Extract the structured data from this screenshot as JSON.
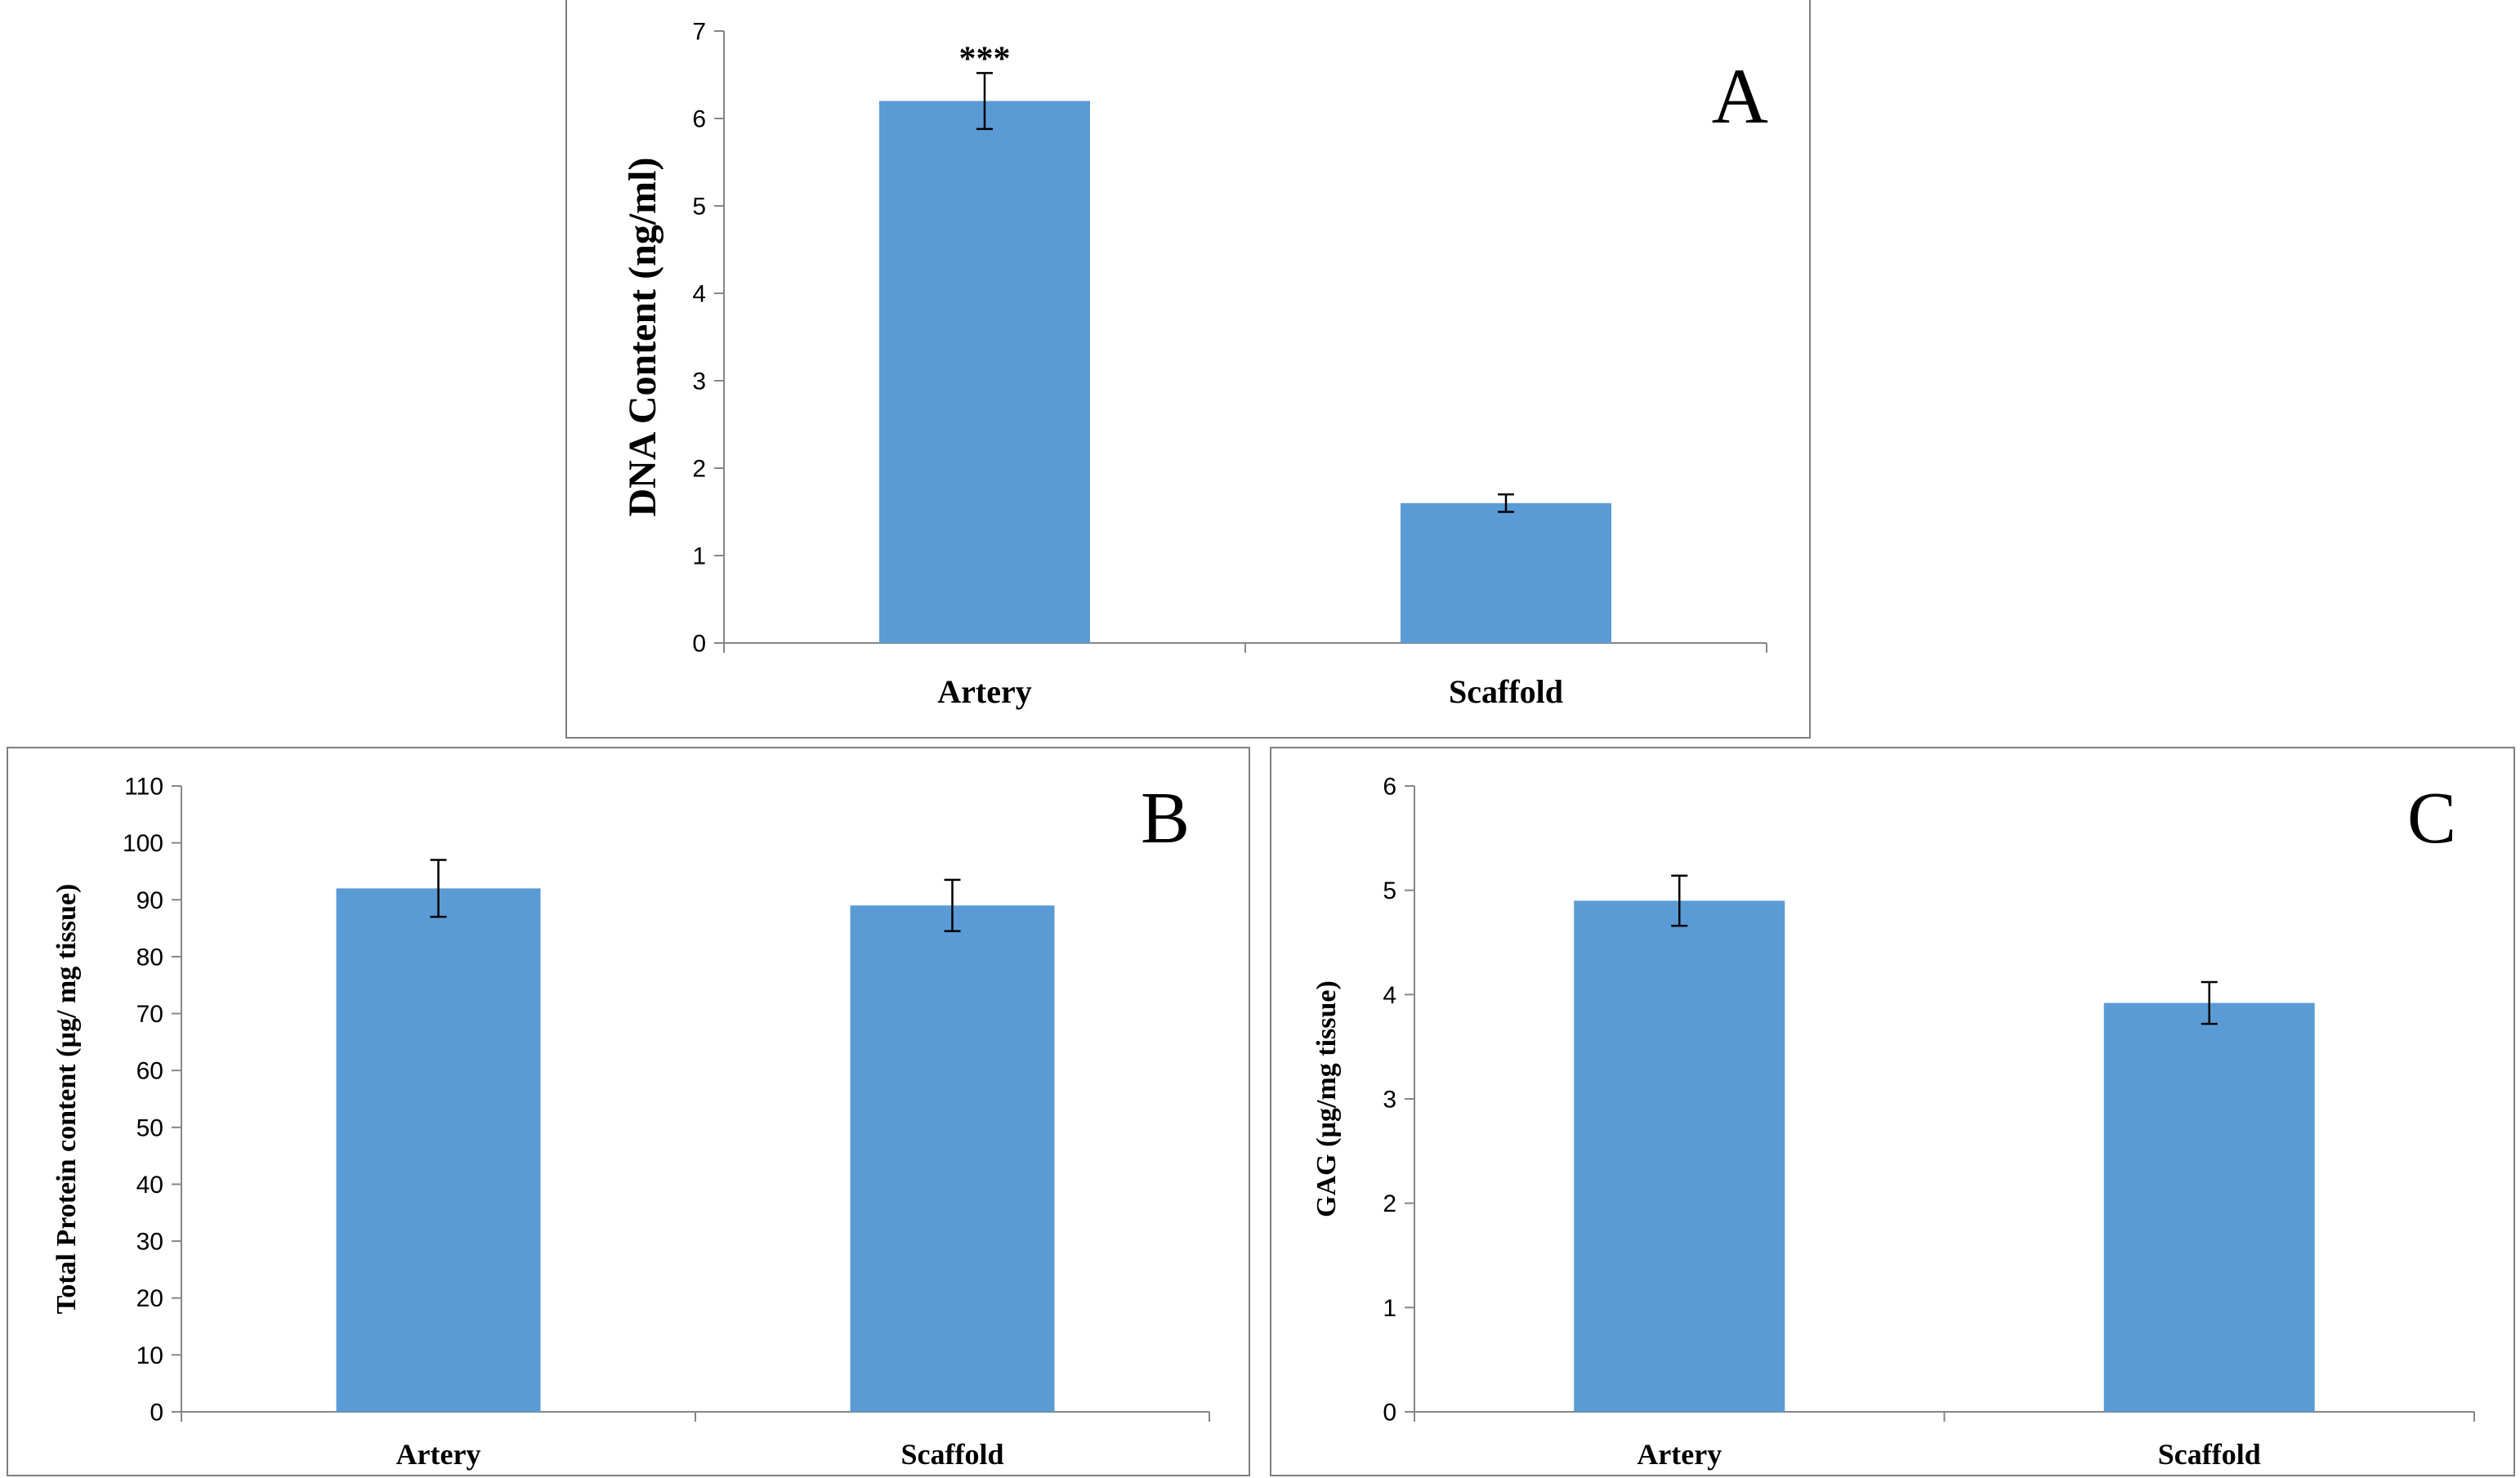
{
  "chart_data": [
    {
      "type": "bar",
      "panel_letter": "A",
      "categories": [
        "Artery",
        "Scaffold"
      ],
      "values": [
        6.2,
        1.6
      ],
      "errors": [
        0.32,
        0.1
      ],
      "annotations": [
        "***",
        ""
      ],
      "ylabel": "DNA Content (ng/ml)",
      "xlabel": "",
      "ylim": [
        0,
        7
      ],
      "yticks": [
        0,
        1,
        2,
        3,
        4,
        5,
        6,
        7
      ],
      "bar_color": "#5B9BD5",
      "grid": false
    },
    {
      "type": "bar",
      "panel_letter": "B",
      "categories": [
        "Artery",
        "Scaffold"
      ],
      "values": [
        92,
        89
      ],
      "errors": [
        5,
        4.5
      ],
      "annotations": [
        "",
        ""
      ],
      "ylabel": "Total  Protein content  (µg/ mg tissue)",
      "xlabel": "",
      "ylim": [
        0,
        110
      ],
      "yticks": [
        0,
        10,
        20,
        30,
        40,
        50,
        60,
        70,
        80,
        90,
        100,
        110
      ],
      "bar_color": "#5B9BD5",
      "grid": false
    },
    {
      "type": "bar",
      "panel_letter": "C",
      "categories": [
        "Artery",
        "Scaffold"
      ],
      "values": [
        4.9,
        3.92
      ],
      "errors": [
        0.24,
        0.2
      ],
      "annotations": [
        "",
        ""
      ],
      "ylabel": "GAG  (µg/mg tissue)",
      "xlabel": "",
      "ylim": [
        0,
        6
      ],
      "yticks": [
        0,
        1,
        2,
        3,
        4,
        5,
        6
      ],
      "bar_color": "#5B9BD5",
      "grid": false
    }
  ]
}
